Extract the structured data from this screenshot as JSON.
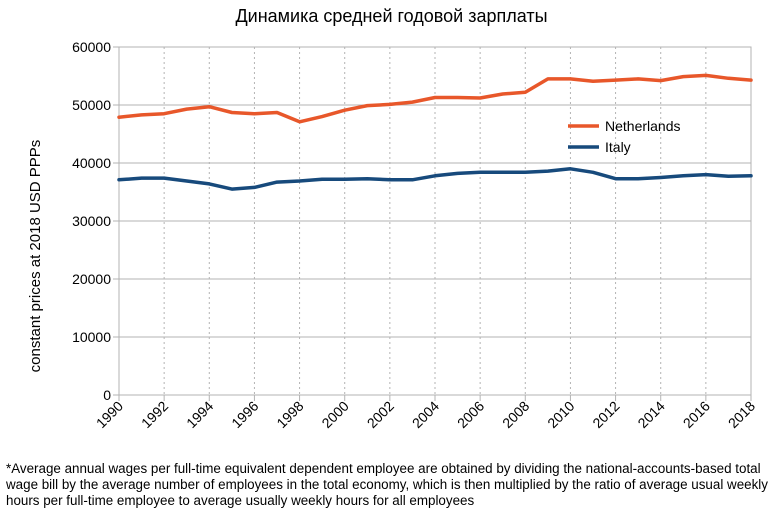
{
  "chart_data": {
    "type": "line",
    "title": "Динамика средней годовой зарплаты",
    "xlabel": "",
    "ylabel": "constant prices at 2018 USD PPPs",
    "x": [
      1990,
      1991,
      1992,
      1993,
      1994,
      1995,
      1996,
      1997,
      1998,
      1999,
      2000,
      2001,
      2002,
      2003,
      2004,
      2005,
      2006,
      2007,
      2008,
      2009,
      2010,
      2011,
      2012,
      2013,
      2014,
      2015,
      2016,
      2017,
      2018
    ],
    "x_tick_labels": [
      "1990",
      "1992",
      "1994",
      "1996",
      "1998",
      "2000",
      "2002",
      "2004",
      "2006",
      "2008",
      "2010",
      "2012",
      "2014",
      "2016",
      "2018"
    ],
    "y_tick_labels": [
      "0",
      "10000",
      "20000",
      "30000",
      "40000",
      "50000",
      "60000"
    ],
    "ylim": [
      0,
      60000
    ],
    "grid": true,
    "legend_position": "right",
    "series": [
      {
        "name": "Netherlands",
        "color": "#e8572a",
        "values": [
          47900,
          48300,
          48500,
          49300,
          49700,
          48700,
          48500,
          48700,
          47100,
          48000,
          49100,
          49900,
          50100,
          50500,
          51300,
          51300,
          51200,
          51900,
          52200,
          54500,
          54500,
          54100,
          54300,
          54500,
          54200,
          54900,
          55100,
          54600,
          54300
        ]
      },
      {
        "name": "Italy",
        "color": "#174a7c",
        "values": [
          37100,
          37400,
          37400,
          36900,
          36400,
          35500,
          35800,
          36700,
          36900,
          37200,
          37200,
          37300,
          37100,
          37100,
          37800,
          38200,
          38400,
          38400,
          38400,
          38600,
          39000,
          38400,
          37300,
          37300,
          37500,
          37800,
          38000,
          37700,
          37800
        ]
      }
    ],
    "footnote": "*Average annual wages per full-time equivalent dependent employee are obtained by dividing the national-accounts-based total wage bill by the average number of employees in the total economy, which is then multiplied by the ratio of average usual weekly hours per full-time employee to average usually weekly hours for all employees"
  }
}
